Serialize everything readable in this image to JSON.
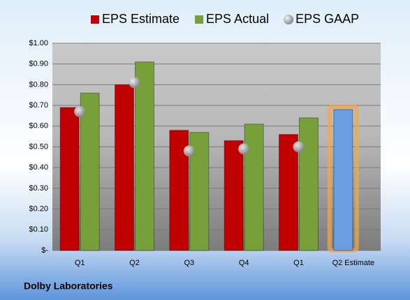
{
  "chart_data": {
    "type": "bar",
    "categories": [
      "Q1",
      "Q2",
      "Q3",
      "Q4",
      "Q1",
      "Q2 Estimate"
    ],
    "series": [
      {
        "name": "EPS Estimate",
        "color": "#c00000",
        "values": [
          0.69,
          0.8,
          0.58,
          0.53,
          0.56,
          0.68
        ],
        "point_colors": [
          "#c00000",
          "#c00000",
          "#c00000",
          "#c00000",
          "#c00000",
          "#6a9ee0"
        ]
      },
      {
        "name": "EPS Actual",
        "color": "#77a03a",
        "values": [
          0.76,
          0.91,
          0.57,
          0.61,
          0.64,
          null
        ]
      },
      {
        "name": "EPS GAAP",
        "color": "#a0a4a8",
        "marker": "circle",
        "values": [
          0.67,
          0.81,
          0.48,
          0.49,
          0.5,
          null
        ]
      }
    ],
    "ylim": [
      0,
      1
    ],
    "yticks": [
      {
        "value": 0,
        "label": "$-"
      },
      {
        "value": 0.1,
        "label": "$0.10"
      },
      {
        "value": 0.2,
        "label": "$0.20"
      },
      {
        "value": 0.3,
        "label": "$0.30"
      },
      {
        "value": 0.4,
        "label": "$0.40"
      },
      {
        "value": 0.5,
        "label": "$0.50"
      },
      {
        "value": 0.6,
        "label": "$0.60"
      },
      {
        "value": 0.7,
        "label": "$0.70"
      },
      {
        "value": 0.8,
        "label": "$0.80"
      },
      {
        "value": 0.9,
        "label": "$0.90"
      },
      {
        "value": 1,
        "label": "$1.00"
      }
    ],
    "grid": true,
    "legend": "top",
    "footer": "Dolby Laboratories"
  }
}
